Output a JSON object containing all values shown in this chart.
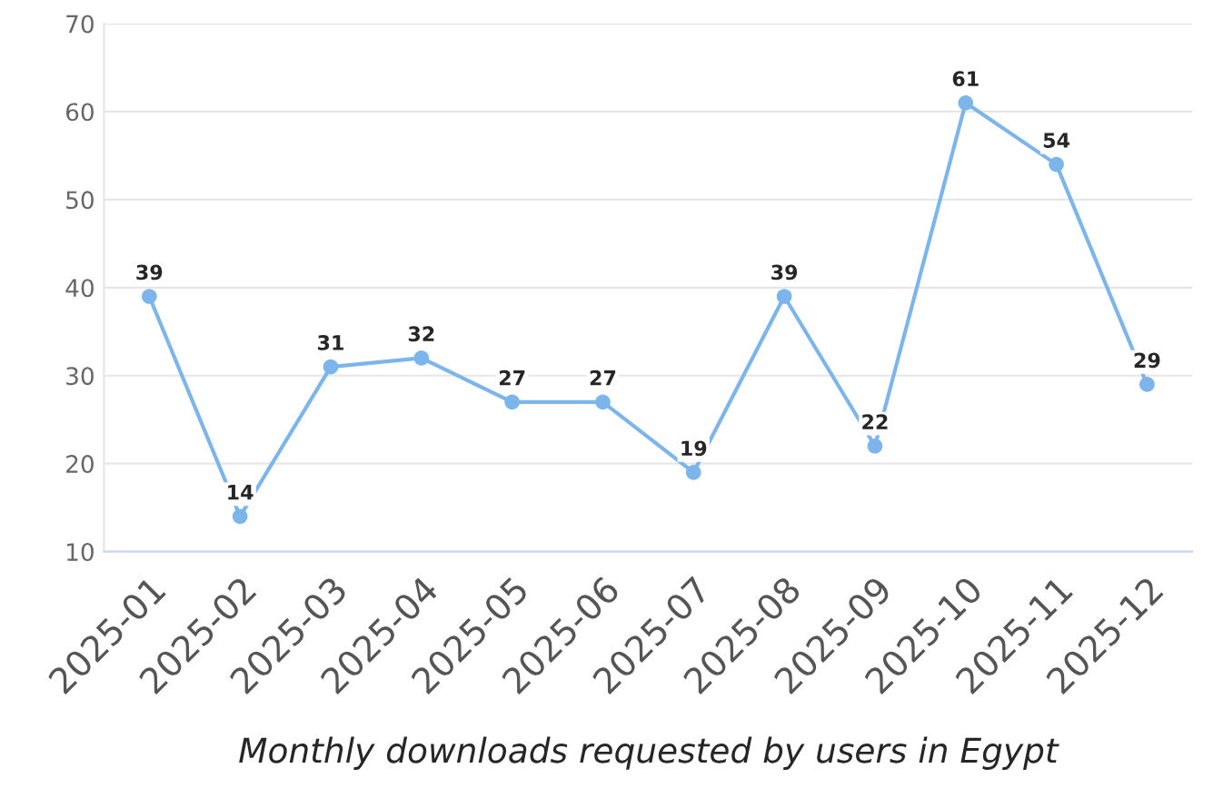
{
  "chart_data": {
    "type": "line",
    "xlabel": "Monthly downloads requested by users in Egypt",
    "categories": [
      "2025-01",
      "2025-02",
      "2025-03",
      "2025-04",
      "2025-05",
      "2025-06",
      "2025-07",
      "2025-08",
      "2025-09",
      "2025-10",
      "2025-11",
      "2025-12"
    ],
    "series": [
      {
        "color": "#7cb5ec",
        "values": [
          39,
          14,
          31,
          32,
          27,
          27,
          19,
          39,
          22,
          61,
          54,
          29
        ]
      }
    ],
    "ylim": [
      10,
      70
    ],
    "yticks": [
      10,
      20,
      30,
      40,
      50,
      60,
      70
    ],
    "grid": "y",
    "marker": "circle",
    "line_style": "solid",
    "data_labels": true
  }
}
